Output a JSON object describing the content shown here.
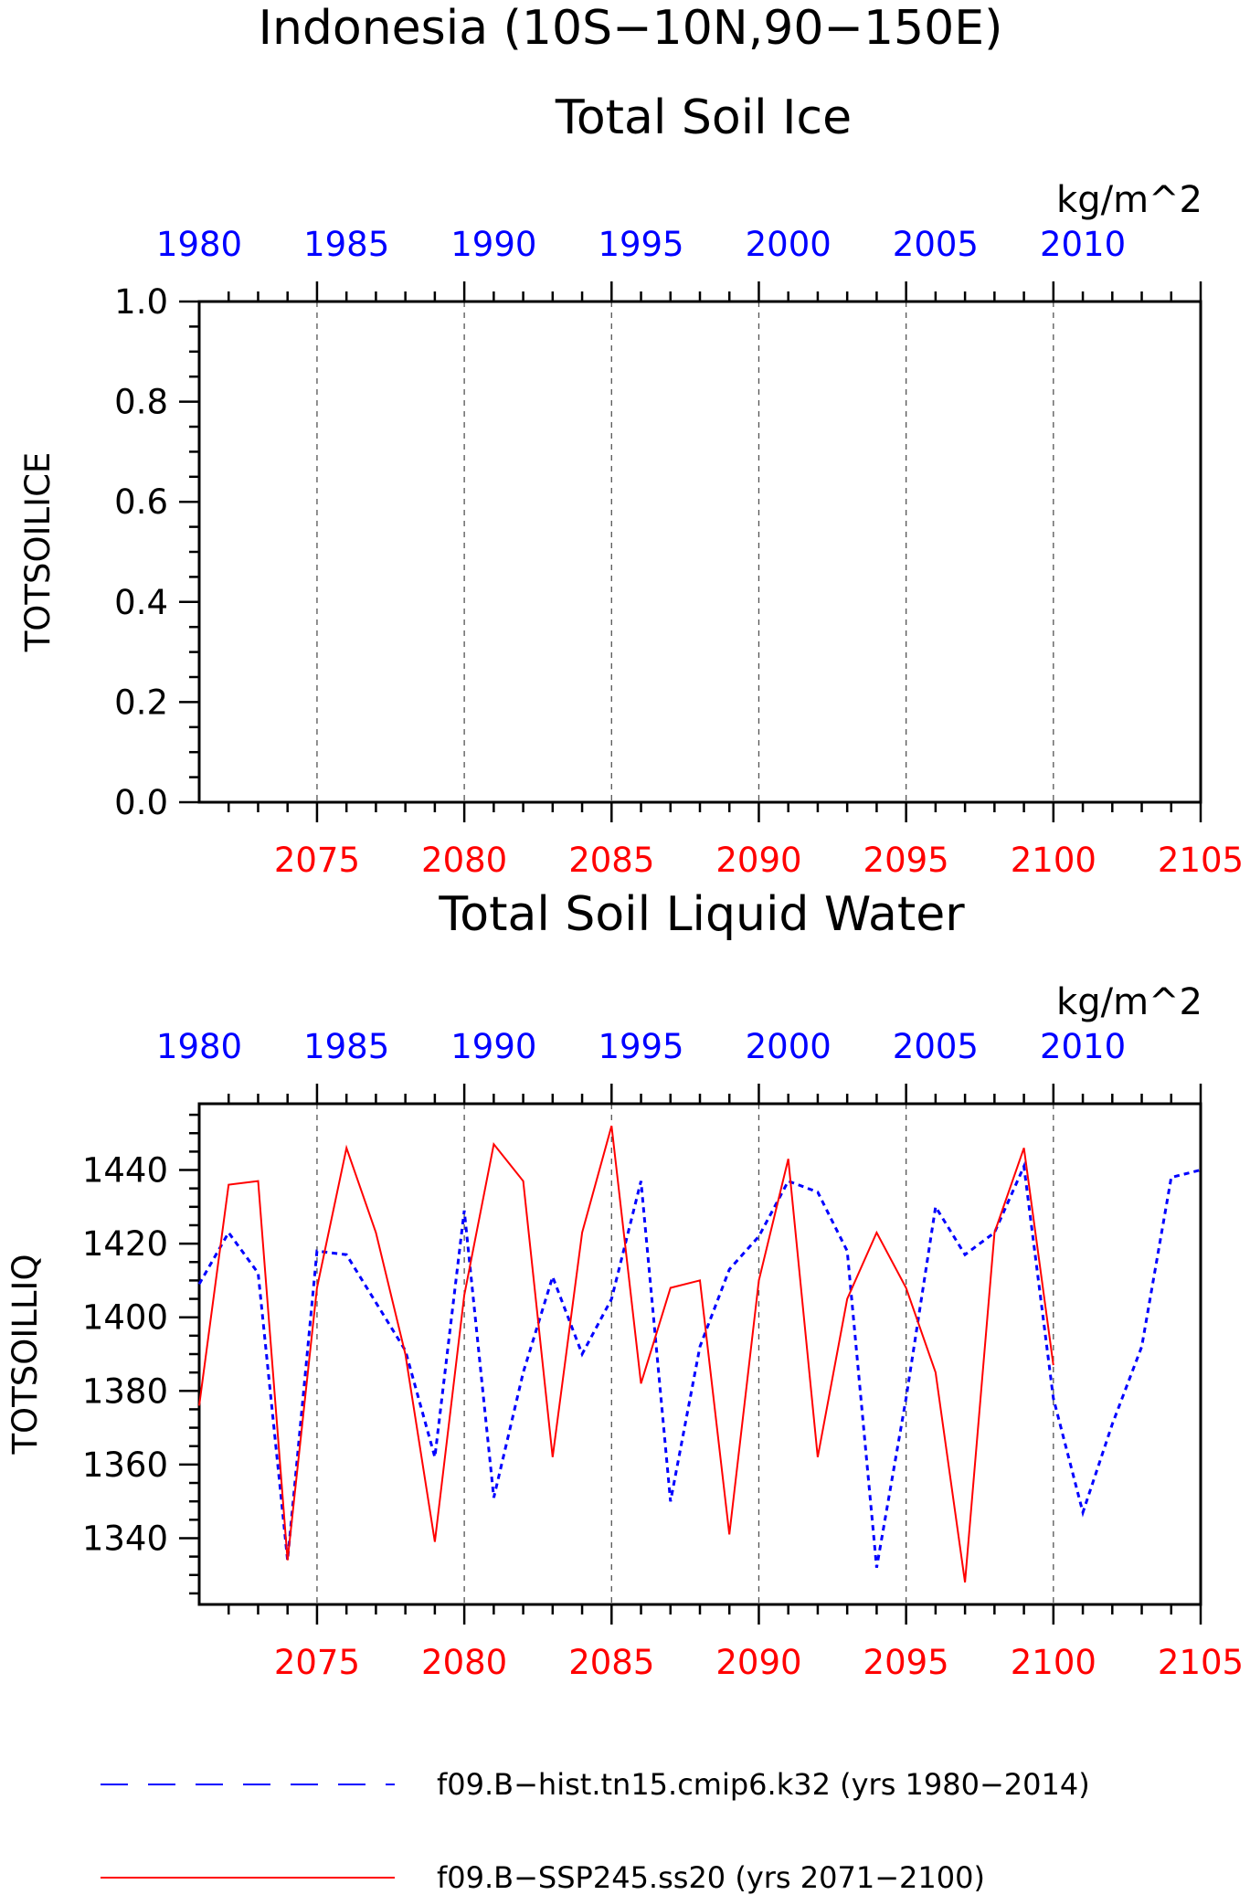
{
  "figure": {
    "title_line1": "Indonesia (10S−10N,90−150E)",
    "title_line2": "Total Soil Ice"
  },
  "legend": {
    "entries": [
      {
        "label": "f09.B−hist.tn15.cmip6.k32 (yrs 1980−2014)",
        "color": "#0000ff",
        "style": "dashed"
      },
      {
        "label": "f09.B−SSP245.ss20 (yrs 2071−2100)",
        "color": "#ff0000",
        "style": "solid"
      }
    ]
  },
  "chart_data": [
    {
      "type": "line",
      "title": "Total Soil Ice",
      "units": "kg/m^2",
      "ylabel": "TOTSOILICE",
      "ylim": [
        0,
        1
      ],
      "yticks": [
        "0.0",
        "0.2",
        "0.4",
        "0.6",
        "0.8",
        "1.0"
      ],
      "top_axis": {
        "color": "#0000ff",
        "ticks": [
          "1980",
          "1985",
          "1990",
          "1995",
          "2000",
          "2005",
          "2010"
        ]
      },
      "bottom_axis": {
        "color": "#ff0000",
        "ticks": [
          "2075",
          "2080",
          "2085",
          "2090",
          "2095",
          "2100",
          "2105"
        ]
      },
      "grid": "dashed vertical at bottom-axis major ticks",
      "series": []
    },
    {
      "type": "line",
      "title": "Total Soil Liquid Water",
      "units": "kg/m^2",
      "ylabel": "TOTSOILLIQ",
      "ylim": [
        1322,
        1458
      ],
      "yticks": [
        "1340",
        "1360",
        "1380",
        "1400",
        "1420",
        "1440"
      ],
      "top_axis": {
        "color": "#0000ff",
        "ticks": [
          "1980",
          "1985",
          "1990",
          "1995",
          "2000",
          "2005",
          "2010"
        ]
      },
      "bottom_axis": {
        "color": "#ff0000",
        "ticks": [
          "2075",
          "2080",
          "2085",
          "2090",
          "2095",
          "2100",
          "2105"
        ]
      },
      "grid": "dashed vertical at bottom-axis major ticks",
      "series": [
        {
          "name": "f09.B−hist.tn15.cmip6.k32 (yrs 1980−2014)",
          "color": "#0000ff",
          "style": "dashed",
          "x": [
            1980,
            1981,
            1982,
            1983,
            1984,
            1985,
            1986,
            1987,
            1988,
            1989,
            1990,
            1991,
            1992,
            1993,
            1994,
            1995,
            1996,
            1997,
            1998,
            1999,
            2000,
            2001,
            2002,
            2003,
            2004,
            2005,
            2006,
            2007,
            2008,
            2009,
            2010,
            2011,
            2012,
            2013,
            2014
          ],
          "values": [
            1409,
            1423,
            1412,
            1334,
            1418,
            1417,
            1404,
            1391,
            1362,
            1429,
            1351,
            1385,
            1411,
            1390,
            1405,
            1437,
            1350,
            1392,
            1413,
            1422,
            1437,
            1434,
            1418,
            1332,
            1378,
            1430,
            1417,
            1423,
            1441,
            1378,
            1347,
            1371,
            1392,
            1438,
            1440
          ]
        },
        {
          "name": "f09.B−SSP245.ss20 (yrs 2071−2100)",
          "color": "#ff0000",
          "style": "solid",
          "x": [
            2071,
            2072,
            2073,
            2074,
            2075,
            2076,
            2077,
            2078,
            2079,
            2080,
            2081,
            2082,
            2083,
            2084,
            2085,
            2086,
            2087,
            2088,
            2089,
            2090,
            2091,
            2092,
            2093,
            2094,
            2095,
            2096,
            2097,
            2098,
            2099,
            2100
          ],
          "values": [
            1376,
            1436,
            1437,
            1334,
            1408,
            1446,
            1423,
            1390,
            1339,
            1406,
            1447,
            1437,
            1362,
            1423,
            1452,
            1382,
            1408,
            1410,
            1341,
            1410,
            1443,
            1362,
            1405,
            1423,
            1408,
            1385,
            1328,
            1423,
            1446,
            1387
          ]
        }
      ]
    }
  ]
}
